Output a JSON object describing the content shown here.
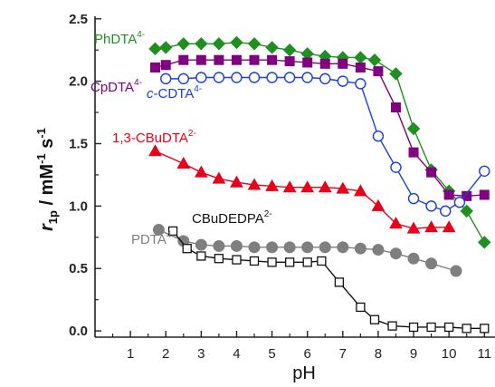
{
  "chart_data": {
    "type": "scatter",
    "xlabel": "pH",
    "ylabel_main": "r",
    "ylabel_sub": "1p",
    "ylabel_rest": " / mM",
    "ylabel_sup1": "-1",
    "ylabel_s": " s",
    "ylabel_sup2": "-1",
    "xlim": [
      0,
      11.3
    ],
    "ylim": [
      -0.05,
      2.52
    ],
    "xticks": [
      1,
      2,
      3,
      4,
      5,
      6,
      7,
      8,
      9,
      10,
      11
    ],
    "yticks": [
      0.0,
      0.5,
      1.0,
      1.5,
      2.0,
      2.5
    ],
    "ytick_labels": [
      "0.0",
      "0.5",
      "1.0",
      "1.5",
      "2.0",
      "2.5"
    ],
    "grid": false,
    "series": [
      {
        "name": "PhDTA",
        "charge": "4-",
        "color": "#1f8f1f",
        "marker": "diamond-filled",
        "x": [
          1.7,
          2.0,
          2.5,
          3.0,
          3.5,
          4.0,
          4.5,
          5.0,
          5.5,
          6.0,
          6.5,
          7.0,
          7.5,
          7.9,
          8.5,
          9.0,
          9.5,
          10.0,
          10.5,
          11.0
        ],
        "y": [
          2.26,
          2.27,
          2.3,
          2.3,
          2.3,
          2.31,
          2.3,
          2.27,
          2.25,
          2.22,
          2.2,
          2.19,
          2.19,
          2.17,
          2.06,
          1.62,
          1.29,
          1.12,
          0.96,
          0.71
        ]
      },
      {
        "name": "CpDTA",
        "charge": "4-",
        "color": "#800080",
        "marker": "square-filled",
        "x": [
          1.7,
          2.0,
          2.5,
          3.0,
          3.5,
          4.0,
          4.5,
          5.0,
          5.5,
          6.0,
          6.5,
          7.0,
          7.5,
          8.0,
          8.5,
          9.0,
          9.5,
          10.0,
          10.5,
          11.0
        ],
        "y": [
          2.11,
          2.13,
          2.17,
          2.17,
          2.17,
          2.17,
          2.17,
          2.17,
          2.16,
          2.15,
          2.14,
          2.14,
          2.11,
          2.08,
          1.79,
          1.43,
          1.27,
          1.09,
          1.08,
          1.09
        ]
      },
      {
        "name": "c-CDTA",
        "charge": "4-",
        "color": "#1a3fd6",
        "marker": "circle-open",
        "x": [
          2.0,
          2.5,
          3.0,
          3.5,
          4.0,
          4.5,
          5.0,
          5.5,
          6.0,
          6.5,
          7.0,
          7.5,
          8.0,
          8.5,
          9.0,
          9.5,
          9.9,
          10.3,
          11.0
        ],
        "y": [
          2.02,
          2.02,
          2.03,
          2.03,
          2.03,
          2.03,
          2.03,
          2.03,
          2.03,
          2.02,
          2.0,
          1.98,
          1.56,
          1.31,
          1.06,
          1.0,
          0.96,
          1.03,
          1.28
        ]
      },
      {
        "name": "1,3-CBuDTA",
        "charge": "2-",
        "color": "#e8001a",
        "marker": "triangle-filled",
        "x": [
          1.7,
          2.5,
          3.0,
          3.5,
          4.0,
          4.5,
          5.0,
          5.5,
          6.0,
          6.5,
          7.0,
          7.5,
          8.0,
          8.5,
          9.0,
          9.5,
          10.0
        ],
        "y": [
          1.44,
          1.34,
          1.27,
          1.22,
          1.19,
          1.17,
          1.16,
          1.15,
          1.15,
          1.15,
          1.14,
          1.12,
          1.0,
          0.86,
          0.82,
          0.83,
          0.83
        ]
      },
      {
        "name": "PDTA",
        "charge": "4-",
        "color": "#7f7f7f",
        "marker": "circle-filled",
        "x": [
          1.8,
          2.5,
          3.0,
          3.5,
          4.0,
          4.5,
          5.0,
          5.5,
          6.0,
          6.5,
          7.0,
          7.5,
          8.0,
          8.5,
          9.0,
          9.5,
          10.2
        ],
        "y": [
          0.81,
          0.72,
          0.69,
          0.68,
          0.68,
          0.67,
          0.67,
          0.67,
          0.67,
          0.67,
          0.67,
          0.66,
          0.65,
          0.62,
          0.58,
          0.54,
          0.48
        ]
      },
      {
        "name": "CBuDEDPA",
        "charge": "2-",
        "color": "#111111",
        "marker": "square-open",
        "x": [
          2.2,
          2.6,
          3.0,
          3.5,
          4.0,
          4.5,
          5.0,
          5.5,
          6.0,
          6.4,
          6.9,
          7.5,
          7.9,
          8.4,
          9.0,
          9.5,
          10.0,
          10.5,
          11.0
        ],
        "y": [
          0.8,
          0.66,
          0.6,
          0.58,
          0.57,
          0.56,
          0.55,
          0.55,
          0.55,
          0.56,
          0.39,
          0.19,
          0.09,
          0.04,
          0.03,
          0.03,
          0.03,
          0.02,
          0.02
        ]
      }
    ],
    "labels": [
      {
        "name": "PhDTA",
        "charge": "4-",
        "color": "#1f8f1f",
        "italic_prefix": ""
      },
      {
        "name": "CpDTA",
        "charge": "4-",
        "color": "#800080",
        "italic_prefix": ""
      },
      {
        "name": "-CDTA",
        "charge": "4-",
        "color": "#1a3fd6",
        "italic_prefix": "c"
      },
      {
        "name": "1,3-CBuDTA",
        "charge": "2-",
        "color": "#e8001a",
        "italic_prefix": ""
      },
      {
        "name": "CBuDEDPA",
        "charge": "2-",
        "color": "#111111",
        "italic_prefix": ""
      },
      {
        "name": "PDTA",
        "charge": "4-",
        "color": "#7f7f7f",
        "italic_prefix": ""
      }
    ]
  }
}
